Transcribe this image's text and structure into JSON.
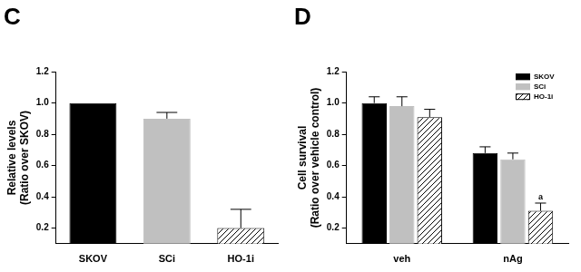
{
  "chart_data": [
    {
      "type": "bar",
      "title": "C",
      "categories": [
        "SKOV",
        "SCi",
        "HO-1i"
      ],
      "values": [
        1.0,
        0.9,
        0.2
      ],
      "errors": [
        0,
        0.04,
        0.12
      ],
      "colors": [
        "#000000",
        "#c0c0c0",
        "#ffffff"
      ],
      "marker": "hatch",
      "y_label": "Relative levels",
      "y_sublabel": "(Ratio over SKOV)",
      "ylim": [
        0.1,
        1.2
      ],
      "yticks": [
        0.2,
        0.4,
        0.6,
        0.8,
        {
          "value": 1,
          "label": "1.0"
        },
        1.2
      ],
      "grid": false
    },
    {
      "type": "bar",
      "title": "D",
      "categories": [
        "veh",
        "nAg"
      ],
      "series": [
        {
          "name": "SKOV",
          "color": "#000000",
          "values": [
            1.0,
            0.68
          ],
          "errors": [
            0.04,
            0.04
          ]
        },
        {
          "name": "SCi",
          "color": "#c0c0c0",
          "values": [
            0.98,
            0.64
          ],
          "errors": [
            0.06,
            0.04
          ]
        },
        {
          "name": "HO-1i",
          "color": "#ffffff",
          "marker": "hatch",
          "values": [
            0.91,
            0.31
          ],
          "errors": [
            0.05,
            0.05
          ]
        }
      ],
      "annotations": [
        {
          "text": "a",
          "category": "nAg",
          "series": "HO-1i"
        }
      ],
      "y_label": "Cell survival",
      "y_sublabel": "(Ratio over vehicle control)",
      "ylim": [
        0.1,
        1.2
      ],
      "yticks": [
        0.2,
        0.4,
        0.6,
        0.8,
        {
          "value": 1,
          "label": "1.0"
        },
        1.2
      ],
      "grid": false,
      "legend": "upper right"
    }
  ]
}
